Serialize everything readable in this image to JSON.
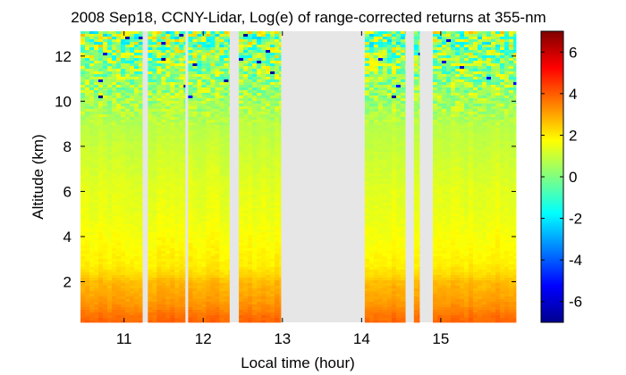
{
  "chart_data": {
    "type": "heatmap",
    "title": "2008 Sep18, CCNY-Lidar, Log(e) of range-corrected returns at 355-nm",
    "xlabel": "Local time (hour)",
    "ylabel": "Altitude (km)",
    "xlim": [
      10.45,
      15.95
    ],
    "ylim": [
      0.2,
      13.1
    ],
    "xticks": [
      11,
      12,
      13,
      14,
      15
    ],
    "yticks": [
      2,
      4,
      6,
      8,
      10,
      12
    ],
    "colorbar": {
      "range": [
        -7,
        7
      ],
      "ticks": [
        -6,
        -4,
        -2,
        0,
        2,
        4,
        6
      ],
      "colormap": "jet"
    },
    "data_segments": [
      [
        10.45,
        11.23
      ],
      [
        11.3,
        11.77
      ],
      [
        11.81,
        12.33
      ],
      [
        12.45,
        12.98
      ],
      [
        14.04,
        14.55
      ],
      [
        14.66,
        14.73
      ],
      [
        14.9,
        15.95
      ]
    ],
    "profile": {
      "altitude_km": [
        0.2,
        0.5,
        0.8,
        1.2,
        1.6,
        2.0,
        2.3,
        2.7,
        3.5,
        5.0,
        6.0,
        8.0,
        10.0,
        11.5,
        13.1
      ],
      "log_value": [
        3.9,
        3.7,
        3.4,
        3.1,
        2.9,
        2.7,
        2.3,
        2.0,
        1.8,
        1.5,
        1.4,
        1.0,
        0.6,
        0.3,
        0.1
      ]
    },
    "grid": false
  }
}
